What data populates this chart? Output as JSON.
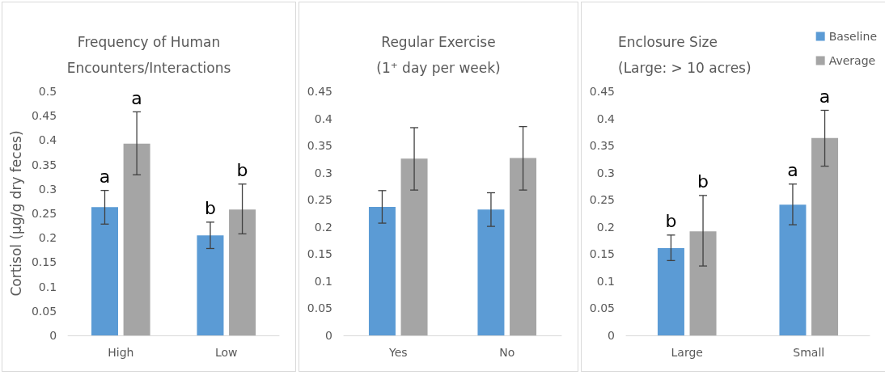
{
  "chart_data": [
    {
      "type": "bar",
      "title": "Frequency of Human\nEncounters/Interactions",
      "ylabel": "Cortisol (µg/g dry feces)",
      "categories": [
        "High",
        "Low"
      ],
      "series": [
        {
          "color": "#5b9bd5",
          "values": [
            0.263,
            0.205
          ],
          "errors": [
            [
              0.228,
              0.297
            ],
            [
              0.178,
              0.232
            ]
          ],
          "value_labels": [
            "a",
            "b"
          ]
        },
        {
          "color": "#a5a5a5",
          "values": [
            0.393,
            0.258
          ],
          "errors": [
            [
              0.329,
              0.458
            ],
            [
              0.208,
              0.31
            ]
          ],
          "value_labels": [
            "a",
            "b"
          ]
        }
      ],
      "ylim": [
        0,
        0.5
      ],
      "yticks": [
        0,
        0.05,
        0.1,
        0.15,
        0.2,
        0.25,
        0.3,
        0.35,
        0.4,
        0.45,
        0.5
      ],
      "grid": false,
      "legend": false
    },
    {
      "type": "bar",
      "title": "Regular Exercise\n(1⁺ day per week)",
      "categories": [
        "Yes",
        "No"
      ],
      "series": [
        {
          "color": "#5b9bd5",
          "values": [
            0.237,
            0.232
          ],
          "errors": [
            [
              0.207,
              0.267
            ],
            [
              0.201,
              0.263
            ]
          ]
        },
        {
          "color": "#a5a5a5",
          "values": [
            0.326,
            0.327
          ],
          "errors": [
            [
              0.268,
              0.383
            ],
            [
              0.268,
              0.385
            ]
          ]
        }
      ],
      "ylim": [
        0,
        0.45
      ],
      "yticks": [
        0,
        0.05,
        0.1,
        0.15,
        0.2,
        0.25,
        0.3,
        0.35,
        0.4,
        0.45
      ],
      "grid": false,
      "legend": false
    },
    {
      "type": "bar",
      "title": "Enclosure Size\n(Large: > 10 acres)",
      "categories": [
        "Large",
        "Small"
      ],
      "series": [
        {
          "name": "Baseline",
          "color": "#5b9bd5",
          "values": [
            0.161,
            0.241
          ],
          "errors": [
            [
              0.138,
              0.185
            ],
            [
              0.204,
              0.279
            ]
          ],
          "value_labels": [
            "b",
            "a"
          ]
        },
        {
          "name": "Average",
          "color": "#a5a5a5",
          "values": [
            0.192,
            0.364
          ],
          "errors": [
            [
              0.128,
              0.258
            ],
            [
              0.312,
              0.415
            ]
          ],
          "value_labels": [
            "b",
            "a"
          ]
        }
      ],
      "ylim": [
        0,
        0.45
      ],
      "yticks": [
        0,
        0.05,
        0.1,
        0.15,
        0.2,
        0.25,
        0.3,
        0.35,
        0.4,
        0.45
      ],
      "grid": false,
      "legend": "top right"
    }
  ]
}
